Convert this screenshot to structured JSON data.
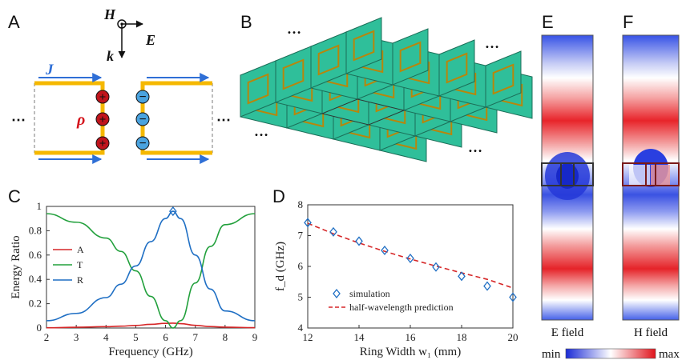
{
  "panels": {
    "a": "A",
    "b": "B",
    "c": "C",
    "d": "D",
    "e": "E",
    "f": "F"
  },
  "panel_a": {
    "h": "H",
    "e": "E",
    "k": "k",
    "j": "J",
    "rho": "ρ",
    "dots": "⋯",
    "plus": "+",
    "minus": "−",
    "colors": {
      "current": "#2f6fd6",
      "strip": "#f5b800",
      "plus": "#c0141c",
      "minus": "#4aa3df"
    }
  },
  "panel_b": {
    "dots": "…",
    "colors": {
      "plate": "#2fbf9a",
      "ring": "#b8860b"
    }
  },
  "chart_data": [
    {
      "type": "line",
      "panel": "C",
      "xlabel": "Frequency (GHz)",
      "ylabel": "Energy Ratio",
      "xlim": [
        2,
        9
      ],
      "ylim": [
        0,
        1
      ],
      "xticks": [
        2,
        3,
        4,
        5,
        6,
        7,
        8,
        9
      ],
      "yticks": [
        0,
        0.2,
        0.4,
        0.6,
        0.8,
        1
      ],
      "legend_position": "left",
      "series": [
        {
          "name": "A",
          "color": "#d62728",
          "x": [
            2,
            3,
            4,
            4.5,
            5,
            5.5,
            6,
            6.25,
            6.5,
            7,
            7.5,
            8,
            9
          ],
          "y": [
            0.002,
            0.006,
            0.011,
            0.015,
            0.021,
            0.03,
            0.038,
            0.04,
            0.036,
            0.022,
            0.012,
            0.007,
            0.003
          ]
        },
        {
          "name": "T",
          "color": "#22a03c",
          "x": [
            2,
            3,
            4,
            4.5,
            5,
            5.5,
            6,
            6.25,
            6.5,
            7,
            7.5,
            8,
            9
          ],
          "y": [
            0.94,
            0.87,
            0.74,
            0.63,
            0.47,
            0.26,
            0.06,
            0.0,
            0.06,
            0.37,
            0.67,
            0.85,
            0.94
          ]
        },
        {
          "name": "R",
          "color": "#1f6fc4",
          "x": [
            2,
            3,
            4,
            4.5,
            5,
            5.5,
            6,
            6.25,
            6.5,
            7,
            7.5,
            8,
            9
          ],
          "y": [
            0.06,
            0.12,
            0.25,
            0.36,
            0.51,
            0.71,
            0.9,
            0.96,
            0.9,
            0.6,
            0.32,
            0.14,
            0.06
          ]
        }
      ],
      "marker": {
        "x": 6.25,
        "y": 0.96,
        "shape": "diamond"
      }
    },
    {
      "type": "scatter",
      "panel": "D",
      "xlabel": "Ring Width w₁ (mm)",
      "ylabel": "f_d (GHz)",
      "xlim": [
        12,
        20
      ],
      "ylim": [
        4,
        8
      ],
      "xticks": [
        12,
        14,
        16,
        18,
        20
      ],
      "yticks": [
        4,
        5,
        6,
        7,
        8
      ],
      "legend_position": "bottom-left",
      "series": [
        {
          "name": "simulation",
          "color": "#1f6fc4",
          "marker": "diamond",
          "x": [
            12,
            13,
            14,
            15,
            16,
            17,
            18,
            19,
            20
          ],
          "y": [
            7.42,
            7.12,
            6.82,
            6.52,
            6.26,
            5.98,
            5.68,
            5.36,
            5.0
          ]
        },
        {
          "name": "half-wavelength prediction",
          "color": "#d62728",
          "style": "dashed",
          "x": [
            12,
            13,
            14,
            15,
            16,
            17,
            18,
            19,
            20
          ],
          "y": [
            7.4,
            7.06,
            6.76,
            6.49,
            6.24,
            6.01,
            5.79,
            5.58,
            5.3
          ]
        }
      ]
    }
  ],
  "panel_e": {
    "caption": "E field"
  },
  "panel_f": {
    "caption": "H field"
  },
  "colorbar": {
    "min": "min",
    "max": "max"
  }
}
